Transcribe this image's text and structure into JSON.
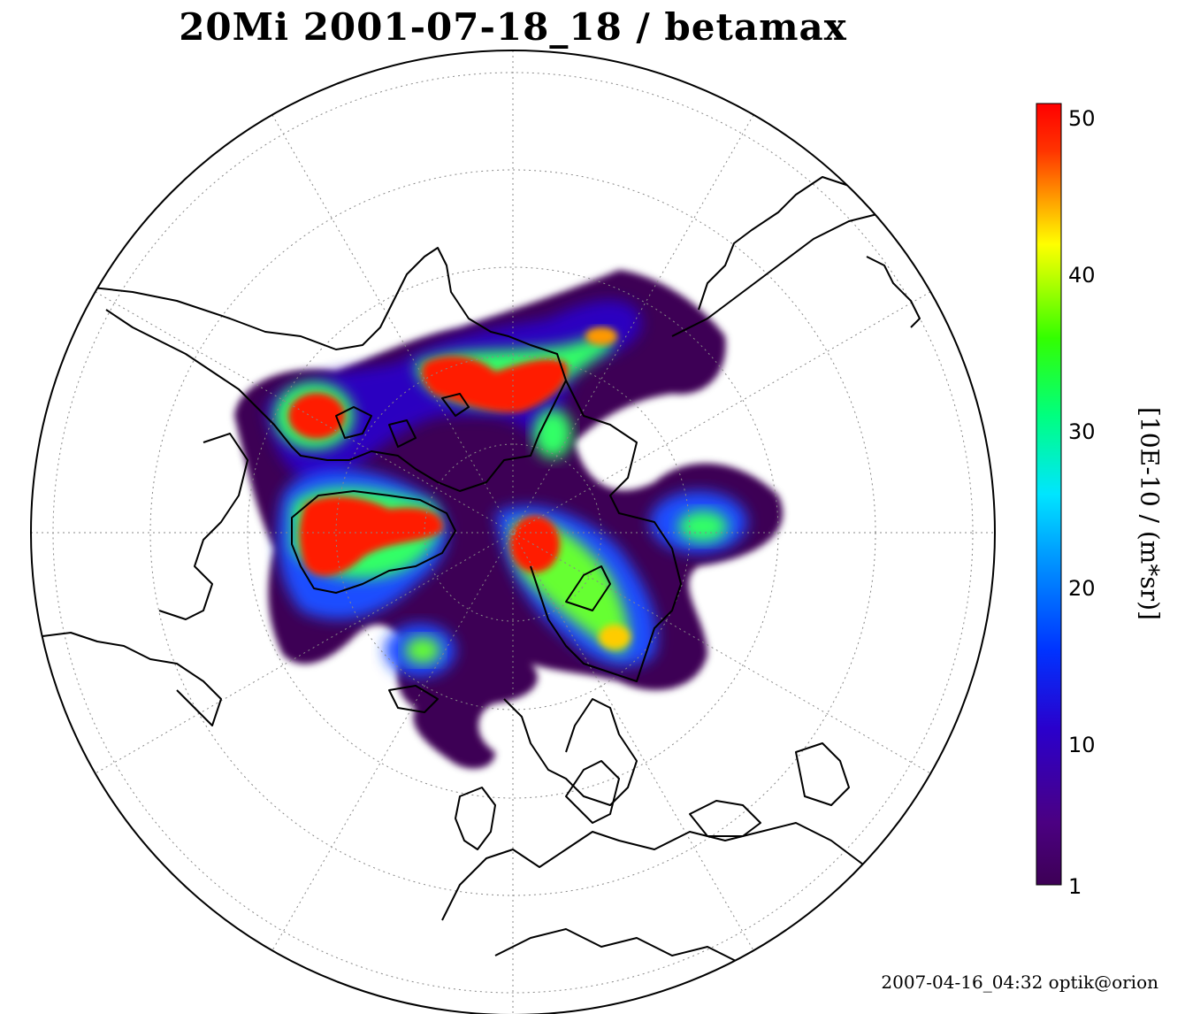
{
  "title": "20Mi 2001-07-18_18 / betamax",
  "colorbar": {
    "ticks": [
      "50",
      "40",
      "30",
      "20",
      "10",
      "1"
    ],
    "unit_label": "[10E-10 / (m*sr)]",
    "colors": [
      "#ff0000",
      "#ff4000",
      "#ff9900",
      "#ffff00",
      "#80ff00",
      "#00ff00",
      "#00ff99",
      "#00ffff",
      "#0099ff",
      "#0033ff",
      "#3300cc",
      "#4b0082",
      "#3d0055"
    ]
  },
  "footer": "2007-04-16_04:32 optik@orion"
}
